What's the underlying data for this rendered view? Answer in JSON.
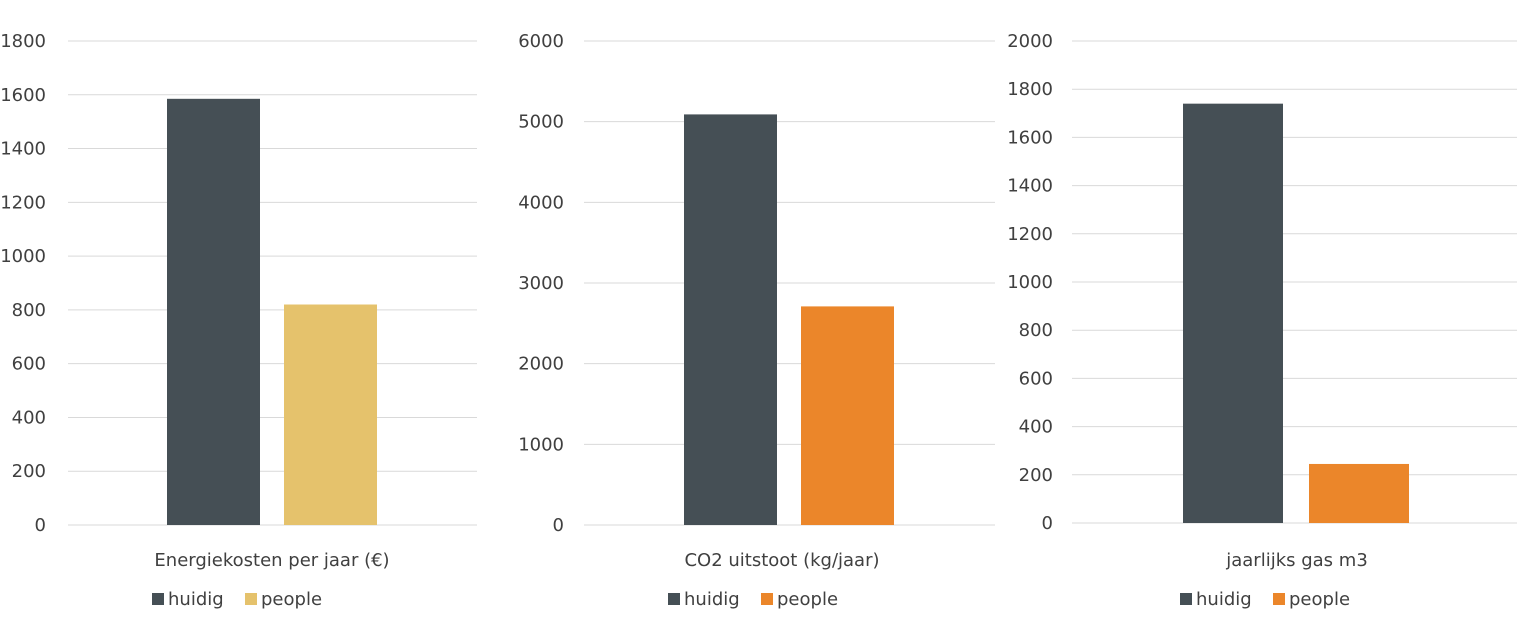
{
  "chart_data": [
    {
      "type": "bar",
      "title": "",
      "categories": [
        "Energiekosten per jaar (€)"
      ],
      "series": [
        {
          "name": "huidig",
          "values": [
            1585
          ],
          "color": "#454f55"
        },
        {
          "name": "people",
          "values": [
            820
          ],
          "color": "#e5c26c"
        }
      ],
      "ylim": [
        0,
        1800
      ],
      "yticks": [
        0,
        200,
        400,
        600,
        800,
        1000,
        1200,
        1400,
        1600,
        1800
      ],
      "grid": true,
      "legend": "bottom"
    },
    {
      "type": "bar",
      "title": "",
      "categories": [
        "CO2 uitstoot (kg/jaar)"
      ],
      "series": [
        {
          "name": "huidig",
          "values": [
            5090
          ],
          "color": "#454f55"
        },
        {
          "name": "people",
          "values": [
            2710
          ],
          "color": "#eb862a"
        }
      ],
      "ylim": [
        0,
        6000
      ],
      "yticks": [
        0,
        1000,
        2000,
        3000,
        4000,
        5000,
        6000
      ],
      "grid": true,
      "legend": "bottom"
    },
    {
      "type": "bar",
      "title": "",
      "categories": [
        "jaarlijks gas m3"
      ],
      "series": [
        {
          "name": "huidig",
          "values": [
            1740
          ],
          "color": "#454f55"
        },
        {
          "name": "people",
          "values": [
            245
          ],
          "color": "#eb862a"
        }
      ],
      "ylim": [
        0,
        2000
      ],
      "yticks": [
        0,
        200,
        400,
        600,
        800,
        1000,
        1200,
        1400,
        1600,
        1800,
        2000
      ],
      "grid": true,
      "legend": "bottom"
    }
  ]
}
